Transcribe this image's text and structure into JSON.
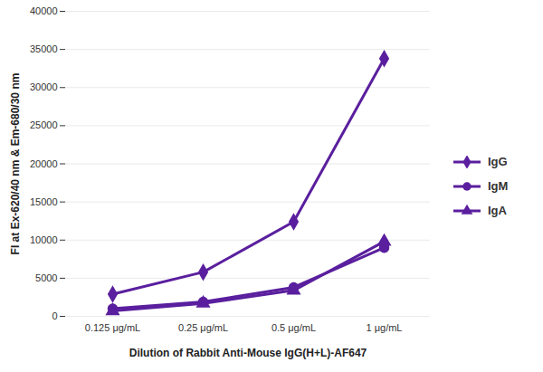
{
  "chart_data": {
    "type": "line",
    "x_label": "Dilution of Rabbit Anti-Mouse IgG(H+L)-AF647",
    "y_label": "FI at Ex-620/40 nm & Em-680/30 nm",
    "categories": [
      "0.125 μg/mL",
      "0.25 μg/mL",
      "0.5 μg/mL",
      "1 μg/mL"
    ],
    "series": [
      {
        "name": "IgG",
        "color": "#5a1f9e",
        "marker": "diamond",
        "values": [
          2900,
          5800,
          12400,
          33800
        ]
      },
      {
        "name": "IgM",
        "color": "#5a1f9e",
        "marker": "circle",
        "values": [
          1000,
          1900,
          3800,
          9000
        ]
      },
      {
        "name": "IgA",
        "color": "#5a1f9e",
        "marker": "triangle",
        "values": [
          700,
          1700,
          3400,
          9800
        ]
      }
    ],
    "ylim": [
      0,
      40000
    ],
    "yticks": [
      0,
      5000,
      10000,
      15000,
      20000,
      25000,
      30000,
      35000,
      40000
    ],
    "grid": true,
    "legend": "right"
  }
}
